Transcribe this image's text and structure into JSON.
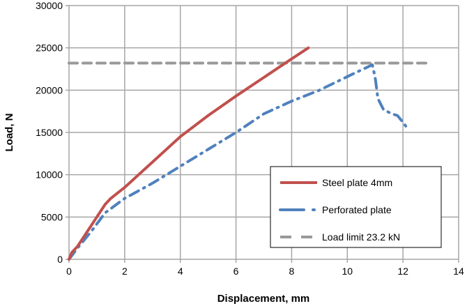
{
  "chart_data": {
    "type": "line",
    "title": "",
    "xlabel": "Displacement, mm",
    "ylabel": "Load, N",
    "xlim": [
      0,
      14
    ],
    "ylim": [
      0,
      30000
    ],
    "xticks": [
      0,
      2,
      4,
      6,
      8,
      10,
      12,
      14
    ],
    "yticks": [
      0,
      5000,
      10000,
      15000,
      20000,
      25000,
      30000
    ],
    "grid": true,
    "legend_position": "bottom-right",
    "series": [
      {
        "name": "Steel plate 4mm",
        "color": "#c0504d",
        "style": "solid",
        "x": [
          0,
          0.1,
          0.3,
          0.6,
          1,
          1.3,
          1.5,
          2,
          3,
          4,
          5,
          6,
          7,
          8,
          8.6
        ],
        "y": [
          0,
          800,
          1500,
          3000,
          5000,
          6500,
          7200,
          8500,
          11500,
          14500,
          17000,
          19300,
          21500,
          23700,
          25000
        ]
      },
      {
        "name": "Perforated plate",
        "color": "#4f81bd",
        "style": "dashdot",
        "x": [
          0,
          0.3,
          0.8,
          1.3,
          2,
          3,
          4,
          5,
          6,
          7,
          8,
          9,
          10,
          10.9,
          11.0,
          11.1,
          11.3,
          11.6,
          11.8,
          12,
          12.2
        ],
        "y": [
          0,
          1300,
          3300,
          5500,
          7200,
          9000,
          11000,
          13000,
          15000,
          17200,
          18700,
          20000,
          21600,
          23000,
          21500,
          19000,
          17700,
          17200,
          17000,
          16200,
          15300
        ]
      },
      {
        "name": "Load limit 23.2 kN",
        "color": "#999999",
        "style": "dashed",
        "x": [
          0,
          13
        ],
        "y": [
          23200,
          23200
        ]
      }
    ]
  }
}
